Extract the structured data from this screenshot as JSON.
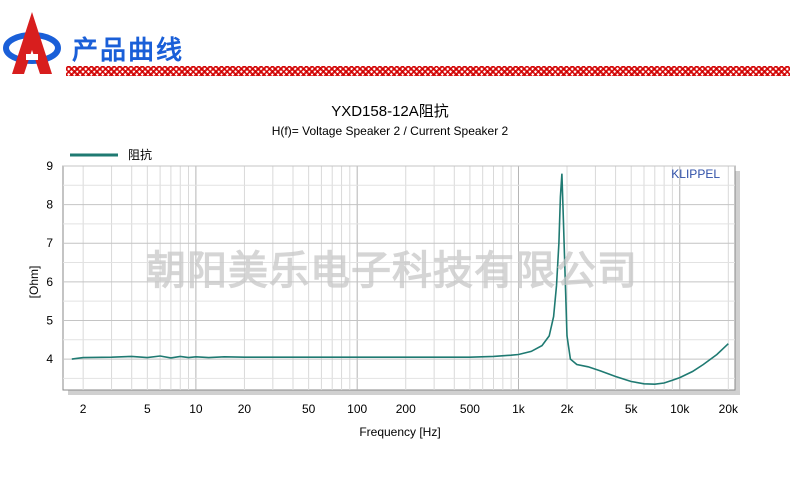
{
  "header": {
    "title": "产品曲线"
  },
  "watermark": "朝阳美乐电子科技有限公司",
  "colors": {
    "accent": "#1a5fd8",
    "stripe": "#e02020",
    "curve": "#1f7a72",
    "brand": "#2e4fa8"
  },
  "chart_data": {
    "type": "line",
    "title": "YXD158-12A阻抗",
    "subtitle": "H(f)= Voltage Speaker 2 / Current Speaker 2",
    "xlabel": "Frequency [Hz]",
    "ylabel": "[Ohm]",
    "brand": "KLIPPEL",
    "xscale": "log",
    "xlim": [
      1.5,
      22000
    ],
    "ylim": [
      3.2,
      9.0
    ],
    "x_ticks": [
      {
        "value": 2,
        "label": "2"
      },
      {
        "value": 5,
        "label": "5"
      },
      {
        "value": 10,
        "label": "10"
      },
      {
        "value": 20,
        "label": "20"
      },
      {
        "value": 50,
        "label": "50"
      },
      {
        "value": 100,
        "label": "100"
      },
      {
        "value": 200,
        "label": "200"
      },
      {
        "value": 500,
        "label": "500"
      },
      {
        "value": 1000,
        "label": "1k"
      },
      {
        "value": 2000,
        "label": "2k"
      },
      {
        "value": 5000,
        "label": "5k"
      },
      {
        "value": 10000,
        "label": "10k"
      },
      {
        "value": 20000,
        "label": "20k"
      }
    ],
    "y_ticks": [
      4,
      5,
      6,
      7,
      8,
      9
    ],
    "grid": true,
    "legend_position": "top-left",
    "series": [
      {
        "name": "阻抗",
        "x": [
          1.7,
          2,
          3,
          4,
          5,
          6,
          7,
          8,
          9,
          10,
          12,
          15,
          20,
          30,
          50,
          100,
          200,
          300,
          500,
          700,
          900,
          1000,
          1200,
          1400,
          1550,
          1650,
          1720,
          1780,
          1820,
          1860,
          1900,
          1950,
          2000,
          2100,
          2300,
          2700,
          3200,
          4000,
          5000,
          6000,
          7000,
          8000,
          9000,
          10000,
          12000,
          14000,
          17000,
          20000
        ],
        "y": [
          4.0,
          4.04,
          4.05,
          4.07,
          4.04,
          4.08,
          4.03,
          4.07,
          4.04,
          4.06,
          4.04,
          4.06,
          4.05,
          4.05,
          4.05,
          4.05,
          4.05,
          4.05,
          4.05,
          4.07,
          4.1,
          4.12,
          4.2,
          4.35,
          4.6,
          5.1,
          5.9,
          7.0,
          8.2,
          8.8,
          7.6,
          6.0,
          4.6,
          4.0,
          3.86,
          3.8,
          3.7,
          3.55,
          3.42,
          3.36,
          3.35,
          3.38,
          3.45,
          3.52,
          3.68,
          3.86,
          4.12,
          4.4
        ]
      }
    ]
  }
}
